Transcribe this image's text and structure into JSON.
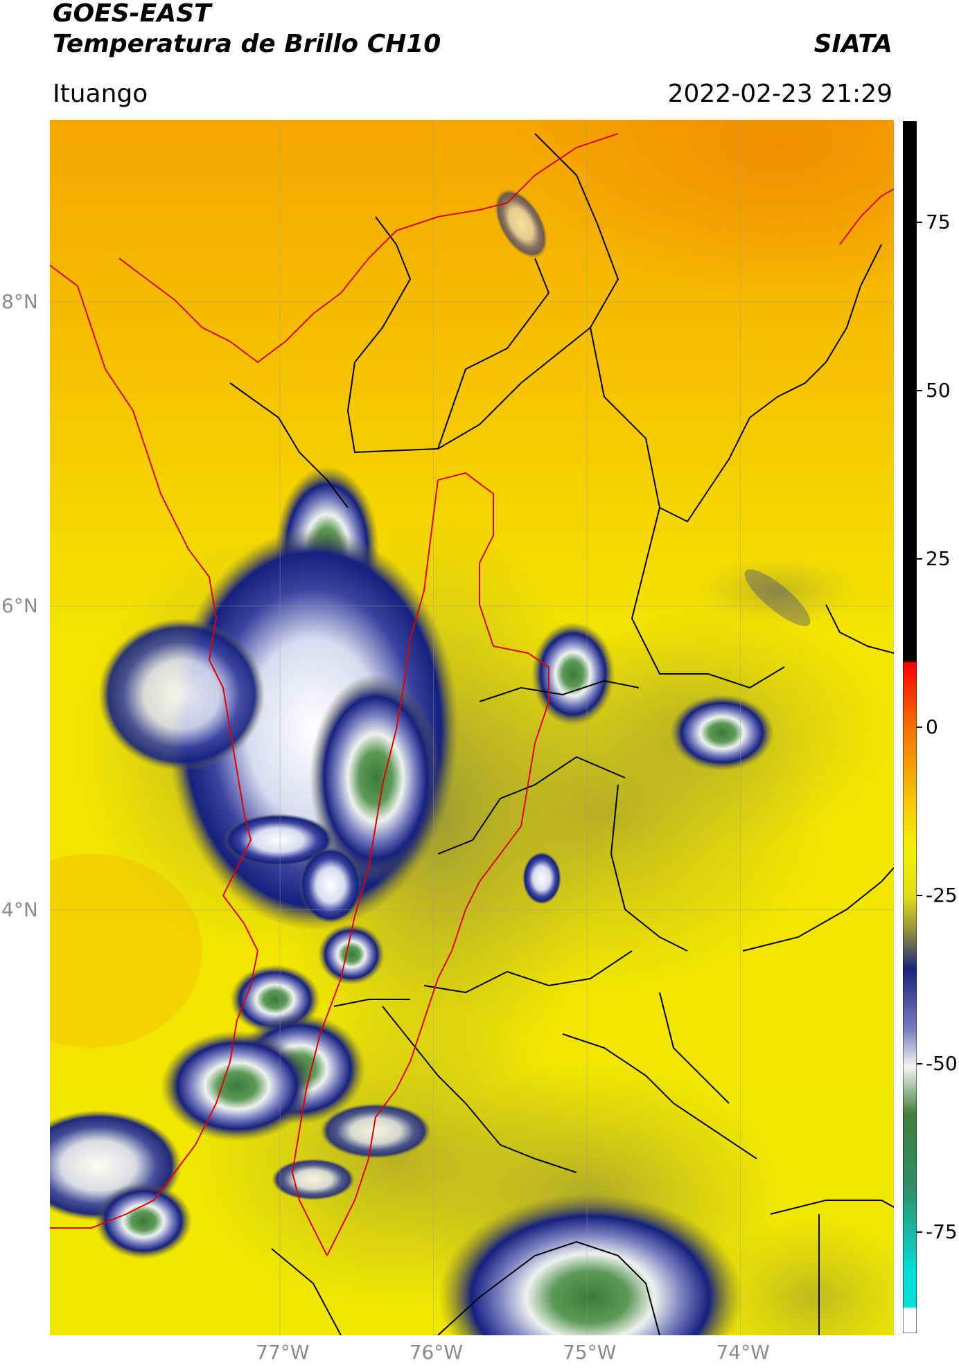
{
  "header": {
    "line1": "GOES-EAST",
    "line2": "Temperatura de Brillo CH10",
    "agency": "SIATA",
    "region": "Ituango",
    "datetime": "2022-02-23 21:29"
  },
  "map": {
    "lon_range": [
      -78.5,
      -73
    ],
    "lat_range": [
      1.2,
      9.2
    ],
    "lat_ticks": [
      {
        "value": 8,
        "label": "8°N"
      },
      {
        "value": 6,
        "label": "6°N"
      },
      {
        "value": 4,
        "label": "4°N"
      }
    ],
    "lon_ticks": [
      {
        "value": -77,
        "label": "77°W"
      },
      {
        "value": -76,
        "label": "76°W"
      },
      {
        "value": -75,
        "label": "75°W"
      },
      {
        "value": -74,
        "label": "74°W"
      }
    ],
    "gridlines": true,
    "colors": {
      "warm": "#f4b400",
      "yellow": "#f2e800",
      "olive": "#9c9a3e",
      "navy": "#15217e",
      "white": "#f2f2f2",
      "green": "#3d7c39",
      "border_black": "#000000",
      "border_red": "#e00000"
    }
  },
  "colorbar": {
    "range": [
      -90,
      90
    ],
    "ticks": [
      {
        "value": 75,
        "label": "75"
      },
      {
        "value": 50,
        "label": "50"
      },
      {
        "value": 25,
        "label": "25"
      },
      {
        "value": 0,
        "label": "0"
      },
      {
        "value": -25,
        "label": "-25"
      },
      {
        "value": -50,
        "label": "-50"
      },
      {
        "value": -75,
        "label": "-75"
      }
    ],
    "position": "right"
  }
}
